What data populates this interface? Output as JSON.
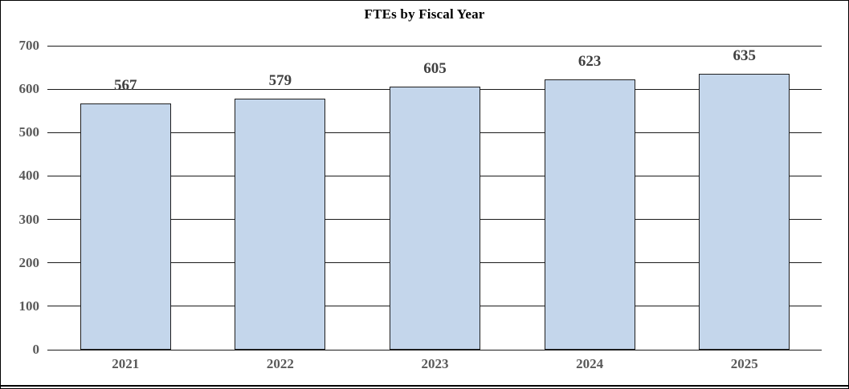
{
  "chart_data": {
    "type": "bar",
    "title": "FTEs by Fiscal Year",
    "categories": [
      "2021",
      "2022",
      "2023",
      "2024",
      "2025"
    ],
    "values": [
      567,
      579,
      605,
      623,
      635
    ],
    "data_labels": [
      "567",
      "579",
      "605",
      "623",
      "635"
    ],
    "xlabel": "",
    "ylabel": "",
    "ylim": [
      0,
      700
    ],
    "y_ticks": [
      0,
      100,
      200,
      300,
      400,
      500,
      600,
      700
    ],
    "grid": true,
    "legend_position": "none",
    "colors": {
      "bar_fill": "#C4D6EB",
      "bar_border": "#1f1f1f",
      "gridline": "#1a1a1a",
      "tick_label": "#595959",
      "data_label": "#404040",
      "title": "#000000",
      "frame_border": "#000000",
      "background": "#ffffff"
    }
  }
}
